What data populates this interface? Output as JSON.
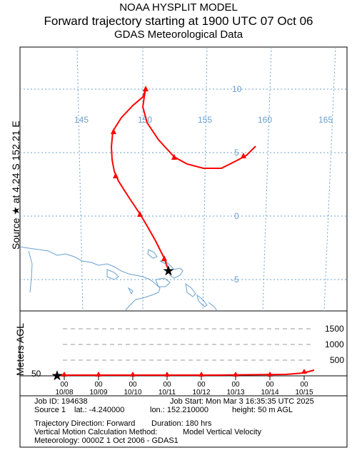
{
  "header": {
    "line1": "NOAA HYSPLIT MODEL",
    "line2": "Forward trajectory starting at 1900 UTC 07 Oct 06",
    "line3": "GDAS Meteorological Data"
  },
  "side_label": "Source ★ at    4.24 S    152.21 E",
  "map": {
    "lon_labels": [
      "145",
      "150",
      "155",
      "160",
      "165"
    ],
    "lat_labels": [
      "10",
      "5",
      "0",
      "-5"
    ],
    "trajectory_color": "#ff0000",
    "grid_color": "#6aa0d0",
    "coast_color": "#6aa0d0",
    "source_marker": "star-icon"
  },
  "height_panel": {
    "ylabel": "Meters AGL",
    "level_labels": [
      "1500",
      "1000",
      "500"
    ],
    "source_height_label": "50",
    "time_ticks": [
      {
        "hour": "00",
        "date": "10/08"
      },
      {
        "hour": "00",
        "date": "10/09"
      },
      {
        "hour": "00",
        "date": "10/10"
      },
      {
        "hour": "00",
        "date": "10/11"
      },
      {
        "hour": "00",
        "date": "10/12"
      },
      {
        "hour": "00",
        "date": "10/13"
      },
      {
        "hour": "00",
        "date": "10/14"
      },
      {
        "hour": "00",
        "date": "10/15"
      }
    ]
  },
  "info": {
    "job_id": "Job ID: 194638",
    "job_start": "Job Start: Mon Mar  3 16:35:35 UTC 2025",
    "source": "Source 1",
    "lat": "lat.: -4.240000",
    "lon": "lon.: 152.210000",
    "height": "height: 50 m AGL",
    "direction": "Trajectory Direction: Forward",
    "duration": "Duration: 180 hrs",
    "vertical_method": "Vertical Motion Calculation Method:",
    "vertical_value": "Model Vertical Velocity",
    "meteorology": "Meteorology: 0000Z  1 Oct 2006 - GDAS1"
  }
}
